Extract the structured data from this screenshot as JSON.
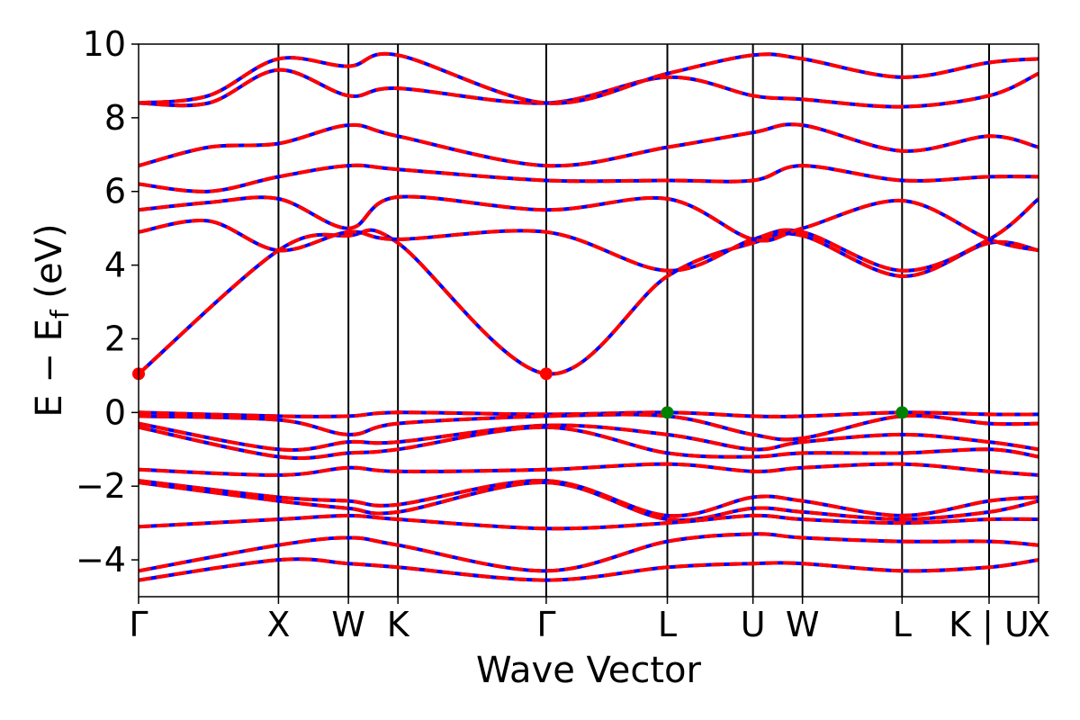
{
  "chart_data": {
    "type": "line",
    "xlabel": "Wave Vector",
    "ylabel": "E − E",
    "ylabel_subscript": "f",
    "ylabel_unit": "(eV)",
    "ylim": [
      -5,
      10
    ],
    "yticks": [
      -4,
      -2,
      0,
      2,
      4,
      6,
      8,
      10
    ],
    "kpath": [
      {
        "label": "Γ",
        "x": 0.0
      },
      {
        "label": "X",
        "x": 1.0
      },
      {
        "label": "W",
        "x": 1.5
      },
      {
        "label": "K",
        "x": 1.854
      },
      {
        "label": "Γ",
        "x": 2.914
      },
      {
        "label": "L",
        "x": 3.78
      },
      {
        "label": "U",
        "x": 4.392
      },
      {
        "label": "W",
        "x": 4.746
      },
      {
        "label": "L",
        "x": 5.458
      },
      {
        "label": "K | U",
        "x": 6.08
      },
      {
        "label": "X",
        "x": 6.434
      }
    ],
    "grid": false,
    "legend": "none",
    "colors": {
      "spin_up": "#ff0000",
      "spin_down": "#0000ff",
      "cbm": "#ff0000",
      "vbm": "#008000"
    },
    "series": [
      {
        "kind": "conduction",
        "points": [
          [
            0,
            1.05
          ],
          [
            1.0,
            4.4
          ],
          [
            1.5,
            4.8
          ],
          [
            1.854,
            4.6
          ],
          [
            2.914,
            1.05
          ],
          [
            3.78,
            3.7
          ],
          [
            4.392,
            4.6
          ],
          [
            4.746,
            4.8
          ],
          [
            5.458,
            3.7
          ],
          [
            6.08,
            4.6
          ],
          [
            6.434,
            4.4
          ]
        ]
      },
      {
        "kind": "conduction",
        "points": [
          [
            0,
            4.9
          ],
          [
            0.5,
            5.2
          ],
          [
            1.0,
            4.4
          ],
          [
            1.5,
            4.9
          ],
          [
            1.854,
            4.7
          ],
          [
            2.914,
            4.9
          ],
          [
            3.78,
            3.85
          ],
          [
            4.392,
            4.7
          ],
          [
            4.746,
            4.9
          ],
          [
            5.458,
            3.85
          ],
          [
            6.08,
            4.7
          ],
          [
            6.434,
            5.8
          ]
        ]
      },
      {
        "kind": "conduction",
        "points": [
          [
            0,
            5.5
          ],
          [
            0.5,
            5.7
          ],
          [
            1.0,
            5.8
          ],
          [
            1.5,
            5.0
          ],
          [
            1.854,
            5.85
          ],
          [
            2.914,
            5.5
          ],
          [
            3.78,
            5.8
          ],
          [
            4.392,
            4.7
          ],
          [
            4.746,
            5.0
          ],
          [
            5.458,
            5.75
          ],
          [
            6.08,
            4.7
          ],
          [
            6.434,
            4.4
          ]
        ]
      },
      {
        "kind": "conduction",
        "points": [
          [
            0,
            6.2
          ],
          [
            0.5,
            6.0
          ],
          [
            1.0,
            6.4
          ],
          [
            1.5,
            6.7
          ],
          [
            1.854,
            6.6
          ],
          [
            2.914,
            6.3
          ],
          [
            3.78,
            6.3
          ],
          [
            4.392,
            6.3
          ],
          [
            4.746,
            6.7
          ],
          [
            5.458,
            6.3
          ],
          [
            6.08,
            6.4
          ],
          [
            6.434,
            6.4
          ]
        ]
      },
      {
        "kind": "conduction",
        "points": [
          [
            0,
            6.7
          ],
          [
            0.5,
            7.2
          ],
          [
            1.0,
            7.3
          ],
          [
            1.5,
            7.8
          ],
          [
            1.854,
            7.5
          ],
          [
            2.914,
            6.7
          ],
          [
            3.78,
            7.2
          ],
          [
            4.392,
            7.6
          ],
          [
            4.746,
            7.8
          ],
          [
            5.458,
            7.1
          ],
          [
            6.08,
            7.5
          ],
          [
            6.434,
            7.2
          ]
        ]
      },
      {
        "kind": "conduction",
        "points": [
          [
            0,
            8.4
          ],
          [
            0.5,
            8.4
          ],
          [
            1.0,
            9.3
          ],
          [
            1.5,
            8.6
          ],
          [
            1.854,
            8.8
          ],
          [
            2.914,
            8.4
          ],
          [
            3.78,
            9.1
          ],
          [
            4.392,
            8.6
          ],
          [
            4.746,
            8.5
          ],
          [
            5.458,
            8.3
          ],
          [
            6.08,
            8.6
          ],
          [
            6.434,
            9.2
          ]
        ]
      },
      {
        "kind": "conduction",
        "points": [
          [
            0,
            8.4
          ],
          [
            0.5,
            8.6
          ],
          [
            1.0,
            9.6
          ],
          [
            1.5,
            9.4
          ],
          [
            1.854,
            9.7
          ],
          [
            2.914,
            8.4
          ],
          [
            3.78,
            9.2
          ],
          [
            4.392,
            9.7
          ],
          [
            4.746,
            9.6
          ],
          [
            5.458,
            9.1
          ],
          [
            6.08,
            9.5
          ],
          [
            6.434,
            9.6
          ]
        ]
      },
      {
        "kind": "valence",
        "points": [
          [
            0,
            0.0
          ],
          [
            1.0,
            -0.1
          ],
          [
            1.5,
            -0.1
          ],
          [
            1.854,
            0.0
          ],
          [
            2.914,
            -0.05
          ],
          [
            3.78,
            0.0
          ],
          [
            4.392,
            -0.1
          ],
          [
            4.746,
            -0.1
          ],
          [
            5.458,
            0.0
          ],
          [
            6.08,
            -0.05
          ],
          [
            6.434,
            -0.05
          ]
        ]
      },
      {
        "kind": "valence",
        "points": [
          [
            0,
            -0.1
          ],
          [
            1.0,
            -0.2
          ],
          [
            1.5,
            -0.6
          ],
          [
            1.854,
            -0.3
          ],
          [
            2.914,
            -0.1
          ],
          [
            3.78,
            -0.1
          ],
          [
            4.392,
            -0.6
          ],
          [
            4.746,
            -0.7
          ],
          [
            5.458,
            -0.1
          ],
          [
            6.08,
            -0.3
          ],
          [
            6.434,
            -0.3
          ]
        ]
      },
      {
        "kind": "valence",
        "points": [
          [
            0,
            -0.3
          ],
          [
            1.0,
            -1.0
          ],
          [
            1.5,
            -0.8
          ],
          [
            1.854,
            -0.8
          ],
          [
            2.914,
            -0.35
          ],
          [
            3.78,
            -0.6
          ],
          [
            4.392,
            -1.0
          ],
          [
            4.746,
            -0.8
          ],
          [
            5.458,
            -0.6
          ],
          [
            6.08,
            -0.8
          ],
          [
            6.434,
            -1.0
          ]
        ]
      },
      {
        "kind": "valence",
        "points": [
          [
            0,
            -0.4
          ],
          [
            1.0,
            -1.2
          ],
          [
            1.5,
            -1.1
          ],
          [
            1.854,
            -1.0
          ],
          [
            2.914,
            -0.4
          ],
          [
            3.78,
            -1.1
          ],
          [
            4.392,
            -1.2
          ],
          [
            4.746,
            -1.1
          ],
          [
            5.458,
            -1.1
          ],
          [
            6.08,
            -1.0
          ],
          [
            6.434,
            -1.2
          ]
        ]
      },
      {
        "kind": "valence",
        "points": [
          [
            0,
            -1.55
          ],
          [
            1.0,
            -1.7
          ],
          [
            1.5,
            -1.5
          ],
          [
            1.854,
            -1.6
          ],
          [
            2.914,
            -1.55
          ],
          [
            3.78,
            -1.4
          ],
          [
            4.392,
            -1.6
          ],
          [
            4.746,
            -1.5
          ],
          [
            5.458,
            -1.4
          ],
          [
            6.08,
            -1.6
          ],
          [
            6.434,
            -1.7
          ]
        ]
      },
      {
        "kind": "valence",
        "points": [
          [
            0,
            -1.85
          ],
          [
            1.0,
            -2.3
          ],
          [
            1.5,
            -2.4
          ],
          [
            1.854,
            -2.5
          ],
          [
            2.914,
            -1.85
          ],
          [
            3.78,
            -2.8
          ],
          [
            4.392,
            -2.3
          ],
          [
            4.746,
            -2.4
          ],
          [
            5.458,
            -2.8
          ],
          [
            6.08,
            -2.4
          ],
          [
            6.434,
            -2.3
          ]
        ]
      },
      {
        "kind": "valence",
        "points": [
          [
            0,
            -1.9
          ],
          [
            1.0,
            -2.4
          ],
          [
            1.5,
            -2.6
          ],
          [
            1.854,
            -2.7
          ],
          [
            2.914,
            -1.9
          ],
          [
            3.78,
            -2.9
          ],
          [
            4.392,
            -2.6
          ],
          [
            4.746,
            -2.7
          ],
          [
            5.458,
            -2.9
          ],
          [
            6.08,
            -2.7
          ],
          [
            6.434,
            -2.4
          ]
        ]
      },
      {
        "kind": "valence",
        "points": [
          [
            0,
            -3.1
          ],
          [
            1.0,
            -2.9
          ],
          [
            1.5,
            -2.8
          ],
          [
            1.854,
            -2.9
          ],
          [
            2.914,
            -3.15
          ],
          [
            3.78,
            -3.0
          ],
          [
            4.392,
            -2.8
          ],
          [
            4.746,
            -2.9
          ],
          [
            5.458,
            -3.0
          ],
          [
            6.08,
            -2.9
          ],
          [
            6.434,
            -2.9
          ]
        ]
      },
      {
        "kind": "valence",
        "points": [
          [
            0,
            -4.3
          ],
          [
            1.0,
            -3.6
          ],
          [
            1.5,
            -3.4
          ],
          [
            1.854,
            -3.6
          ],
          [
            2.914,
            -4.3
          ],
          [
            3.78,
            -3.5
          ],
          [
            4.392,
            -3.3
          ],
          [
            4.746,
            -3.4
          ],
          [
            5.458,
            -3.5
          ],
          [
            6.08,
            -3.5
          ],
          [
            6.434,
            -3.6
          ]
        ]
      },
      {
        "kind": "valence",
        "points": [
          [
            0,
            -4.55
          ],
          [
            1.0,
            -4.0
          ],
          [
            1.5,
            -4.1
          ],
          [
            1.854,
            -4.2
          ],
          [
            2.914,
            -4.55
          ],
          [
            3.78,
            -4.2
          ],
          [
            4.392,
            -4.1
          ],
          [
            4.746,
            -4.1
          ],
          [
            5.458,
            -4.3
          ],
          [
            6.08,
            -4.2
          ],
          [
            6.434,
            -4.0
          ]
        ]
      }
    ],
    "markers": [
      {
        "kind": "cbm",
        "x": 0.0,
        "y": 1.05
      },
      {
        "kind": "cbm",
        "x": 2.914,
        "y": 1.05
      },
      {
        "kind": "vbm",
        "x": 3.78,
        "y": 0.0
      },
      {
        "kind": "vbm",
        "x": 5.458,
        "y": 0.0
      }
    ]
  }
}
